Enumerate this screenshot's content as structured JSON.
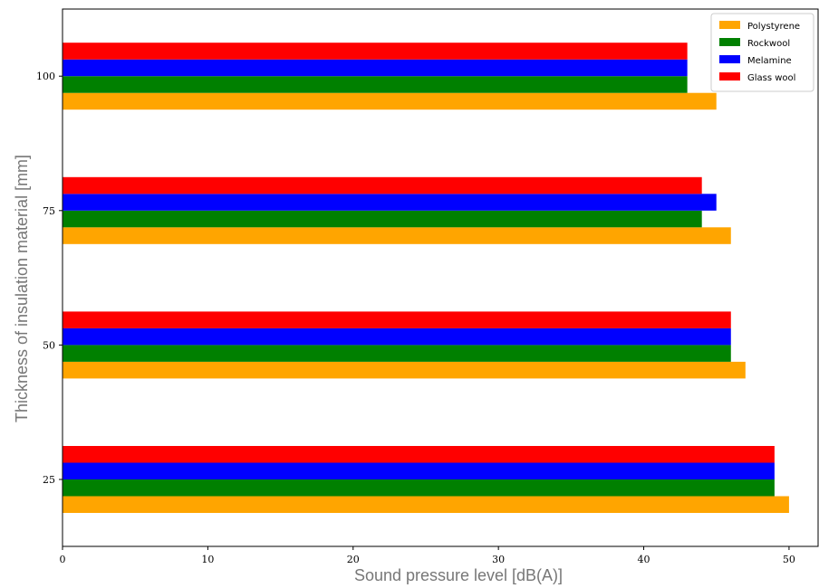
{
  "chart_data": {
    "type": "bar",
    "orientation": "horizontal",
    "xlabel": "Sound pressure level [dB(A)]",
    "ylabel": "Thickness of insulation material [mm]",
    "categories": [
      "25",
      "50",
      "75",
      "100"
    ],
    "xlim": [
      0,
      52
    ],
    "xticks": [
      0,
      10,
      20,
      30,
      40,
      50
    ],
    "grid": false,
    "legend_position": "top-right",
    "series": [
      {
        "name": "Polystyrene",
        "color": "#FFA500",
        "values": [
          50,
          47,
          46,
          45
        ]
      },
      {
        "name": "Rockwool",
        "color": "#008000",
        "values": [
          49,
          46,
          44,
          43
        ]
      },
      {
        "name": "Melamine",
        "color": "#0000FF",
        "values": [
          49,
          46,
          45,
          43
        ]
      },
      {
        "name": "Glass wool",
        "color": "#FF0000",
        "values": [
          49,
          46,
          44,
          43
        ]
      }
    ]
  }
}
